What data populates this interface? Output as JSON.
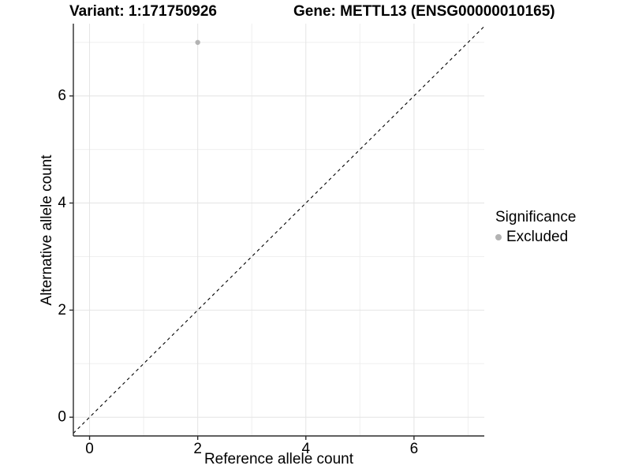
{
  "header": {
    "left_title": "Variant: 1:171750926",
    "right_title": "Gene: METTL13 (ENSG00000010165)"
  },
  "legend": {
    "title": "Significance",
    "items": [
      {
        "label": "Excluded",
        "color": "#b3b3b3"
      }
    ]
  },
  "colors": {
    "background": "#ffffff",
    "grid_major": "#e4e4e4",
    "grid_minor": "#efefef",
    "axis_line": "#2b2b2b",
    "tick_label": "#000000",
    "reference_line": "#000000",
    "point": "#b3b3b3"
  },
  "chart_data": {
    "type": "scatter",
    "title_left": "Variant: 1:171750926",
    "title_right": "Gene: METTL13 (ENSG00000010165)",
    "xlabel": "Reference allele count",
    "ylabel": "Alternative allele count",
    "xlim": [
      -0.3,
      7.3
    ],
    "ylim": [
      -0.35,
      7.35
    ],
    "x_ticks": [
      0,
      2,
      4,
      6
    ],
    "x_minor_ticks": [
      1,
      3,
      5,
      7
    ],
    "y_ticks": [
      0,
      2,
      4,
      6
    ],
    "y_minor_ticks": [
      1,
      3,
      5,
      7
    ],
    "grid": true,
    "legend_position": "right",
    "legend_title": "Significance",
    "series": [
      {
        "name": "Excluded",
        "color": "#b3b3b3",
        "points": [
          {
            "x": 2,
            "y": 7
          }
        ]
      }
    ],
    "reference_line": {
      "type": "identity y=x",
      "style": "dashed",
      "from": [
        -0.3,
        -0.3
      ],
      "to": [
        7.3,
        7.3
      ]
    }
  }
}
